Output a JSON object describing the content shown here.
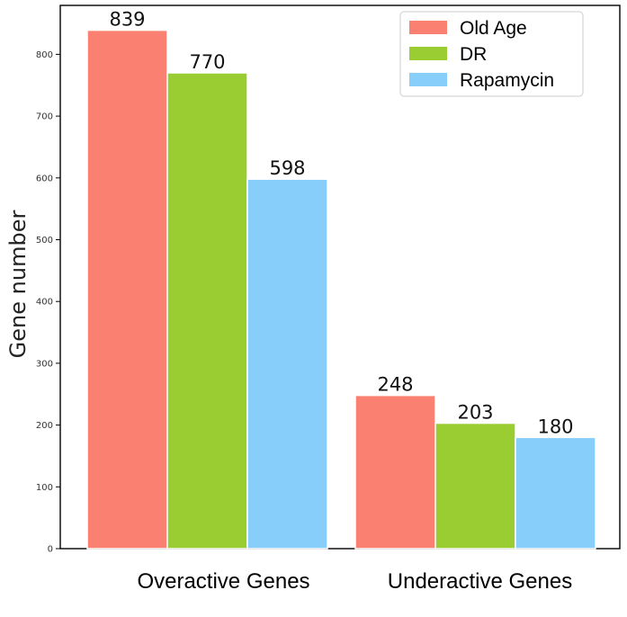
{
  "chart_data": {
    "type": "bar",
    "title": "",
    "xlabel": "",
    "ylabel": "Gene number",
    "ylim": [
      0,
      900
    ],
    "yticks": [
      0,
      100,
      200,
      300,
      400,
      500,
      600,
      700,
      800
    ],
    "categories": [
      "Overactive Genes",
      "Underactive Genes"
    ],
    "series": [
      {
        "name": "Old Age",
        "values": [
          839,
          248
        ],
        "color": "#fa8072"
      },
      {
        "name": "DR",
        "values": [
          770,
          203
        ],
        "color": "#9acd32"
      },
      {
        "name": "Rapamycin",
        "values": [
          598,
          180
        ],
        "color": "#87cefa"
      }
    ],
    "legend": {
      "position": "top-right"
    },
    "grid": false
  }
}
